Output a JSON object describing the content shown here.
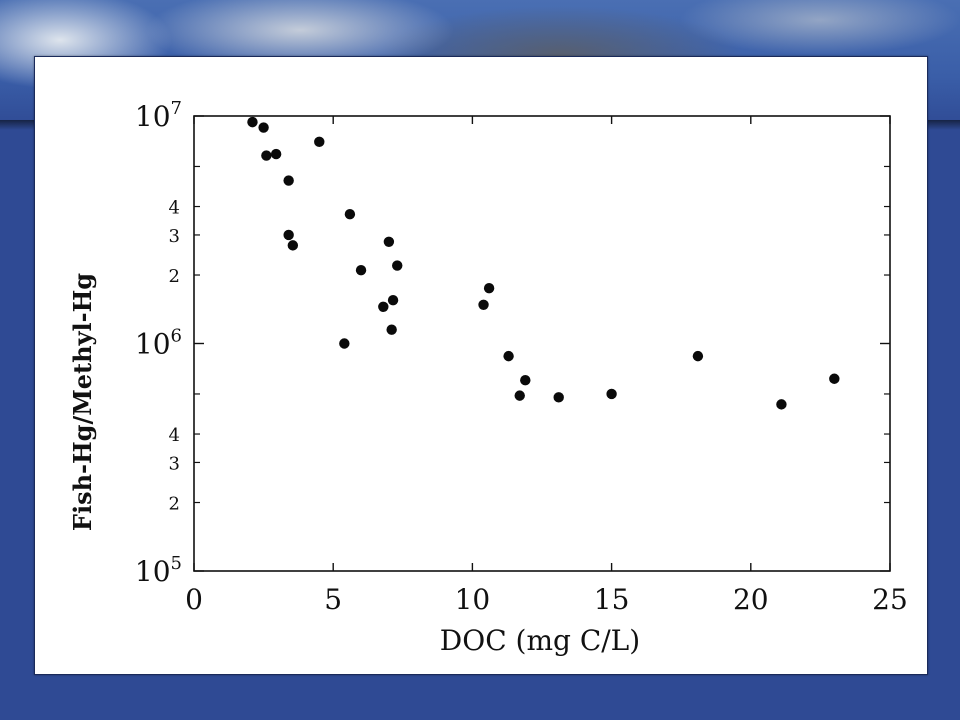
{
  "chart_data": {
    "type": "scatter",
    "title": "",
    "xlabel": "DOC (mg C/L)",
    "ylabel": "Fish-Hg/Methyl-Hg",
    "xlim": [
      0,
      25
    ],
    "ylim": [
      100000,
      10000000
    ],
    "yscale": "log",
    "grid": false,
    "x_ticks": [
      {
        "value": 0,
        "label": "0"
      },
      {
        "value": 5,
        "label": "5"
      },
      {
        "value": 10,
        "label": "10"
      },
      {
        "value": 15,
        "label": "15"
      },
      {
        "value": 20,
        "label": "20"
      },
      {
        "value": 25,
        "label": "25"
      }
    ],
    "y_major_ticks": [
      {
        "value": 100000,
        "base": "10",
        "exp": "5"
      },
      {
        "value": 1000000,
        "base": "10",
        "exp": "6"
      },
      {
        "value": 10000000,
        "base": "10",
        "exp": "7"
      }
    ],
    "y_minor_ticks": [
      {
        "value": 200000,
        "label": "2"
      },
      {
        "value": 300000,
        "label": "3"
      },
      {
        "value": 400000,
        "label": "4"
      },
      {
        "value": 600000,
        "label": ""
      },
      {
        "value": 2000000,
        "label": "2"
      },
      {
        "value": 3000000,
        "label": "3"
      },
      {
        "value": 4000000,
        "label": "4"
      },
      {
        "value": 6000000,
        "label": ""
      }
    ],
    "points": [
      {
        "x": 2.1,
        "y": 9400000
      },
      {
        "x": 2.5,
        "y": 8900000
      },
      {
        "x": 2.6,
        "y": 6700000
      },
      {
        "x": 2.95,
        "y": 6800000
      },
      {
        "x": 3.4,
        "y": 5200000
      },
      {
        "x": 4.5,
        "y": 7700000
      },
      {
        "x": 3.4,
        "y": 3000000
      },
      {
        "x": 3.55,
        "y": 2700000
      },
      {
        "x": 5.6,
        "y": 3700000
      },
      {
        "x": 6.0,
        "y": 2100000
      },
      {
        "x": 7.0,
        "y": 2800000
      },
      {
        "x": 7.3,
        "y": 2200000
      },
      {
        "x": 6.8,
        "y": 1450000
      },
      {
        "x": 7.15,
        "y": 1550000
      },
      {
        "x": 7.1,
        "y": 1150000
      },
      {
        "x": 5.4,
        "y": 1000000
      },
      {
        "x": 10.6,
        "y": 1750000
      },
      {
        "x": 10.4,
        "y": 1480000
      },
      {
        "x": 11.3,
        "y": 880000
      },
      {
        "x": 11.9,
        "y": 690000
      },
      {
        "x": 11.7,
        "y": 590000
      },
      {
        "x": 13.1,
        "y": 580000
      },
      {
        "x": 15.0,
        "y": 600000
      },
      {
        "x": 18.1,
        "y": 880000
      },
      {
        "x": 21.1,
        "y": 540000
      },
      {
        "x": 23.0,
        "y": 700000
      }
    ]
  }
}
